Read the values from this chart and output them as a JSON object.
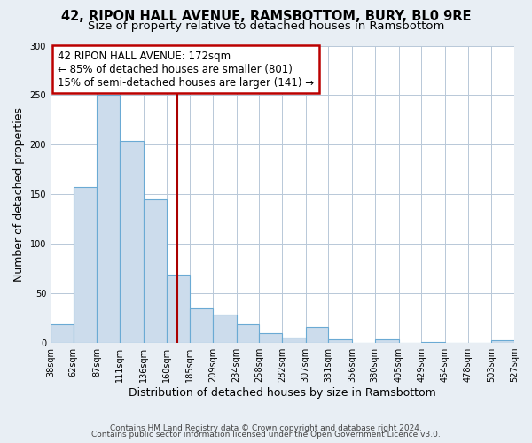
{
  "title": "42, RIPON HALL AVENUE, RAMSBOTTOM, BURY, BL0 9RE",
  "subtitle": "Size of property relative to detached houses in Ramsbottom",
  "xlabel": "Distribution of detached houses by size in Ramsbottom",
  "ylabel": "Number of detached properties",
  "bin_edges": [
    38,
    62,
    87,
    111,
    136,
    160,
    185,
    209,
    234,
    258,
    282,
    307,
    331,
    356,
    380,
    405,
    429,
    454,
    478,
    503,
    527
  ],
  "bin_heights": [
    19,
    157,
    250,
    204,
    145,
    69,
    35,
    29,
    19,
    10,
    5,
    16,
    4,
    0,
    4,
    0,
    1,
    0,
    0,
    3
  ],
  "bar_color": "#ccdcec",
  "bar_edge_color": "#6aaad4",
  "vline_x": 172,
  "vline_color": "#aa0000",
  "annotation_line1": "42 RIPON HALL AVENUE: 172sqm",
  "annotation_line2": "← 85% of detached houses are smaller (801)",
  "annotation_line3": "15% of semi-detached houses are larger (141) →",
  "annotation_box_color": "#ffffff",
  "annotation_box_edge_color": "#bb0000",
  "ylim": [
    0,
    300
  ],
  "yticks": [
    0,
    50,
    100,
    150,
    200,
    250,
    300
  ],
  "xtick_labels": [
    "38sqm",
    "62sqm",
    "87sqm",
    "111sqm",
    "136sqm",
    "160sqm",
    "185sqm",
    "209sqm",
    "234sqm",
    "258sqm",
    "282sqm",
    "307sqm",
    "331sqm",
    "356sqm",
    "380sqm",
    "405sqm",
    "429sqm",
    "454sqm",
    "478sqm",
    "503sqm",
    "527sqm"
  ],
  "footnote1": "Contains HM Land Registry data © Crown copyright and database right 2024.",
  "footnote2": "Contains public sector information licensed under the Open Government Licence v3.0.",
  "bg_color": "#e8eef4",
  "plot_bg_color": "#ffffff",
  "grid_color": "#b8c8d8",
  "title_fontsize": 10.5,
  "subtitle_fontsize": 9.5,
  "axis_label_fontsize": 9,
  "tick_fontsize": 7,
  "footnote_fontsize": 6.5,
  "annotation_fontsize": 8.5
}
